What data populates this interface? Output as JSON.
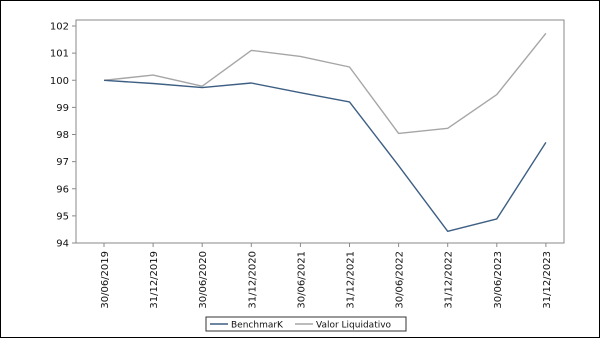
{
  "chart_data": {
    "type": "line",
    "title": "",
    "xlabel": "",
    "ylabel": "",
    "categories": [
      "30/06/2019",
      "31/12/2019",
      "30/06/2020",
      "31/12/2020",
      "30/06/2021",
      "31/12/2021",
      "30/06/2022",
      "31/12/2022",
      "30/06/2023",
      "31/12/2023"
    ],
    "ylim": [
      94,
      102
    ],
    "yticks": [
      94,
      95,
      96,
      97,
      98,
      99,
      100,
      101,
      102
    ],
    "grid": false,
    "legend_position": "bottom-center",
    "series": [
      {
        "name": "BenchmarK",
        "color": "#3e5f84",
        "values": [
          100.0,
          99.88,
          99.73,
          99.9,
          99.54,
          99.2,
          96.85,
          94.43,
          94.89,
          97.71
        ]
      },
      {
        "name": "Valor Liquidativo",
        "color": "#a6a6a6",
        "values": [
          100.0,
          100.19,
          99.78,
          101.1,
          100.88,
          100.49,
          98.04,
          98.23,
          99.47,
          101.73
        ]
      }
    ]
  }
}
